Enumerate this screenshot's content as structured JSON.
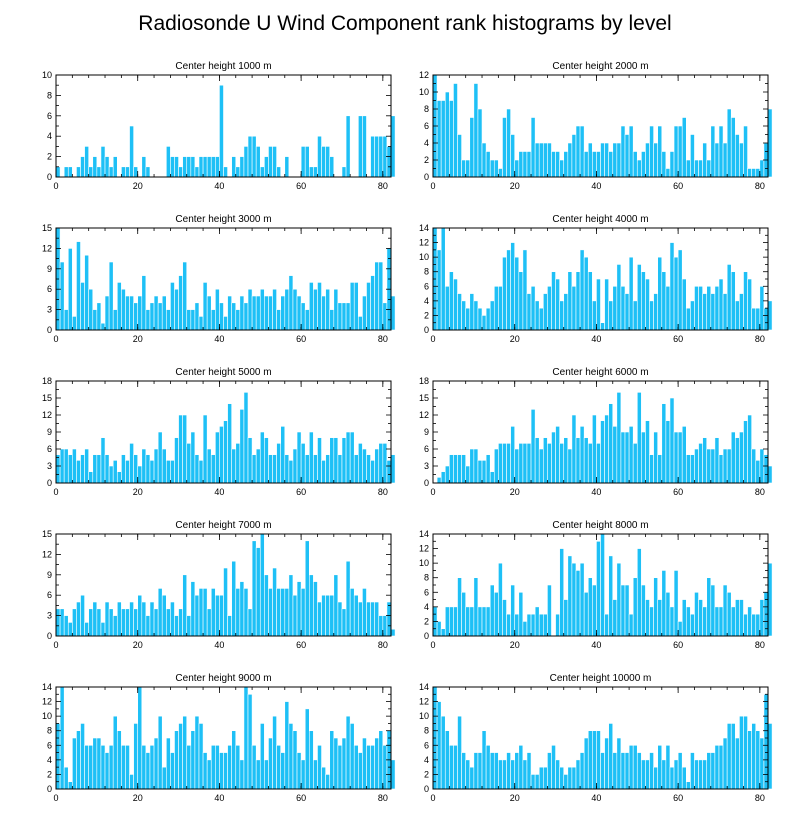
{
  "figure": {
    "title": "Radiosonde U Wind Component rank histograms by level",
    "bar_color": "#1ec0f6",
    "bar_edge_color": "#ffffff"
  },
  "chart_data": [
    {
      "type": "bar",
      "title": "Center height 1000 m",
      "xlim": [
        0,
        82
      ],
      "ylim": [
        0,
        10
      ],
      "xticks": [
        0,
        20,
        40,
        60,
        80
      ],
      "yticks": [
        0,
        2,
        4,
        6,
        8,
        10
      ],
      "values": [
        1,
        0,
        1,
        1,
        0,
        1,
        2,
        3,
        1,
        2,
        1,
        3,
        2,
        1,
        2,
        0,
        1,
        1,
        5,
        1,
        0,
        2,
        1,
        0,
        0,
        0,
        0,
        3,
        2,
        2,
        1,
        2,
        2,
        2,
        1,
        2,
        2,
        2,
        2,
        2,
        9,
        1,
        0,
        2,
        1,
        2,
        3,
        4,
        4,
        3,
        1,
        2,
        3,
        3,
        1,
        0,
        2,
        0,
        0,
        0,
        3,
        3,
        1,
        1,
        4,
        3,
        3,
        2,
        0,
        0,
        1,
        6,
        0,
        0,
        6,
        6,
        0,
        4,
        4,
        4,
        4,
        3,
        6
      ]
    },
    {
      "type": "bar",
      "title": "Center height 2000 m",
      "xlim": [
        0,
        82
      ],
      "ylim": [
        0,
        12
      ],
      "xticks": [
        0,
        20,
        40,
        60,
        80
      ],
      "yticks": [
        0,
        2,
        4,
        6,
        8,
        10,
        12
      ],
      "values": [
        12,
        9,
        9,
        10,
        9,
        11,
        5,
        2,
        2,
        7,
        11,
        8,
        4,
        3,
        2,
        2,
        1,
        7,
        8,
        5,
        2,
        3,
        3,
        3,
        7,
        4,
        4,
        4,
        4,
        3,
        3,
        2,
        3,
        4,
        5,
        6,
        6,
        3,
        4,
        3,
        3,
        4,
        4,
        3,
        4,
        4,
        6,
        5,
        6,
        3,
        2,
        3,
        4,
        6,
        4,
        6,
        3,
        1,
        3,
        6,
        6,
        7,
        2,
        5,
        2,
        2,
        4,
        2,
        6,
        4,
        6,
        4,
        8,
        7,
        5,
        4,
        6,
        1,
        1,
        1,
        2,
        4,
        8
      ]
    },
    {
      "type": "bar",
      "title": "Center height 3000 m",
      "xlim": [
        0,
        82
      ],
      "ylim": [
        0,
        15
      ],
      "xticks": [
        0,
        20,
        40,
        60,
        80
      ],
      "yticks": [
        0,
        3,
        6,
        9,
        12,
        15
      ],
      "values": [
        15,
        10,
        3,
        12,
        2,
        13,
        7,
        11,
        6,
        3,
        4,
        1,
        5,
        10,
        3,
        7,
        6,
        5,
        5,
        4,
        5,
        8,
        3,
        4,
        5,
        4,
        5,
        3,
        7,
        6,
        8,
        10,
        3,
        3,
        4,
        2,
        7,
        5,
        3,
        6,
        4,
        2,
        5,
        4,
        3,
        5,
        4,
        6,
        5,
        5,
        6,
        5,
        5,
        6,
        3,
        5,
        6,
        8,
        6,
        5,
        4,
        3,
        7,
        6,
        7,
        5,
        6,
        3,
        6,
        4,
        4,
        4,
        7,
        7,
        2,
        5,
        7,
        8,
        10,
        10,
        4,
        12,
        5
      ]
    },
    {
      "type": "bar",
      "title": "Center height 4000 m",
      "xlim": [
        0,
        82
      ],
      "ylim": [
        0,
        14
      ],
      "xticks": [
        0,
        20,
        40,
        60,
        80
      ],
      "yticks": [
        0,
        2,
        4,
        6,
        8,
        10,
        12,
        14
      ],
      "values": [
        14,
        11,
        14,
        6,
        8,
        7,
        5,
        4,
        3,
        5,
        4,
        3,
        2,
        3,
        4,
        6,
        6,
        10,
        11,
        12,
        10,
        8,
        11,
        5,
        6,
        4,
        3,
        5,
        6,
        8,
        7,
        4,
        5,
        8,
        6,
        8,
        11,
        10,
        8,
        4,
        7,
        1,
        7,
        4,
        6,
        9,
        6,
        5,
        10,
        4,
        9,
        8,
        7,
        4,
        5,
        10,
        8,
        6,
        12,
        10,
        11,
        7,
        3,
        4,
        6,
        6,
        5,
        6,
        5,
        6,
        7,
        5,
        9,
        8,
        4,
        5,
        8,
        7,
        3,
        3,
        6,
        3,
        4
      ]
    },
    {
      "type": "bar",
      "title": "Center height 5000 m",
      "xlim": [
        0,
        82
      ],
      "ylim": [
        0,
        18
      ],
      "xticks": [
        0,
        20,
        40,
        60,
        80
      ],
      "yticks": [
        0,
        3,
        6,
        9,
        12,
        15,
        18
      ],
      "values": [
        5,
        6,
        6,
        5,
        6,
        4,
        5,
        6,
        2,
        5,
        5,
        8,
        5,
        3,
        4,
        2,
        5,
        4,
        7,
        5,
        3,
        6,
        5,
        4,
        6,
        9,
        6,
        4,
        4,
        8,
        12,
        12,
        7,
        9,
        5,
        4,
        12,
        6,
        5,
        9,
        10,
        11,
        14,
        6,
        7,
        13,
        16,
        8,
        5,
        6,
        9,
        8,
        5,
        5,
        7,
        10,
        5,
        4,
        6,
        9,
        7,
        5,
        9,
        5,
        8,
        4,
        5,
        8,
        8,
        5,
        8,
        9,
        9,
        5,
        7,
        6,
        5,
        4,
        6,
        7,
        7,
        4,
        5
      ]
    },
    {
      "type": "bar",
      "title": "Center height 6000 m",
      "xlim": [
        0,
        82
      ],
      "ylim": [
        0,
        18
      ],
      "xticks": [
        0,
        20,
        40,
        60,
        80
      ],
      "yticks": [
        0,
        3,
        6,
        9,
        12,
        15,
        18
      ],
      "values": [
        0,
        1,
        2,
        3,
        5,
        5,
        5,
        5,
        3,
        6,
        6,
        4,
        4,
        5,
        2,
        6,
        7,
        7,
        7,
        10,
        6,
        7,
        7,
        7,
        13,
        8,
        6,
        8,
        7,
        9,
        10,
        7,
        8,
        6,
        12,
        8,
        10,
        8,
        7,
        12,
        7,
        11,
        12,
        14,
        10,
        16,
        9,
        9,
        10,
        7,
        16,
        9,
        11,
        5,
        9,
        5,
        14,
        11,
        15,
        9,
        9,
        10,
        5,
        5,
        6,
        7,
        8,
        6,
        6,
        8,
        5,
        6,
        6,
        9,
        8,
        9,
        11,
        12,
        6,
        4,
        6,
        5,
        3
      ]
    },
    {
      "type": "bar",
      "title": "Center height 7000 m",
      "xlim": [
        0,
        82
      ],
      "ylim": [
        0,
        15
      ],
      "xticks": [
        0,
        20,
        40,
        60,
        80
      ],
      "yticks": [
        0,
        3,
        6,
        9,
        12,
        15
      ],
      "values": [
        4,
        4,
        3,
        2,
        4,
        5,
        6,
        2,
        4,
        5,
        4,
        2,
        5,
        4,
        3,
        5,
        4,
        4,
        5,
        4,
        6,
        5,
        3,
        5,
        4,
        7,
        6,
        4,
        5,
        3,
        4,
        9,
        3,
        8,
        6,
        7,
        7,
        4,
        7,
        6,
        6,
        10,
        3,
        11,
        7,
        8,
        7,
        4,
        14,
        13,
        15,
        9,
        7,
        10,
        7,
        7,
        7,
        9,
        6,
        8,
        7,
        14,
        9,
        8,
        5,
        6,
        6,
        6,
        9,
        5,
        4,
        11,
        7,
        6,
        5,
        7,
        5,
        5,
        5,
        3,
        3,
        5,
        1
      ]
    },
    {
      "type": "bar",
      "title": "Center height 8000 m",
      "xlim": [
        0,
        82
      ],
      "ylim": [
        0,
        14
      ],
      "xticks": [
        0,
        20,
        40,
        60,
        80
      ],
      "yticks": [
        0,
        2,
        4,
        6,
        8,
        10,
        12,
        14
      ],
      "values": [
        4,
        2,
        1,
        4,
        4,
        4,
        8,
        6,
        4,
        4,
        8,
        4,
        4,
        4,
        7,
        6,
        10,
        5,
        3,
        7,
        3,
        6,
        2,
        3,
        3,
        4,
        3,
        3,
        7,
        0,
        3,
        12,
        5,
        11,
        10,
        9,
        10,
        6,
        8,
        7,
        13,
        14,
        3,
        11,
        5,
        10,
        7,
        7,
        3,
        8,
        12,
        7,
        5,
        4,
        8,
        5,
        9,
        6,
        4,
        9,
        2,
        5,
        4,
        3,
        6,
        5,
        4,
        8,
        7,
        4,
        4,
        7,
        6,
        4,
        5,
        5,
        3,
        4,
        3,
        3,
        5,
        6,
        10
      ]
    },
    {
      "type": "bar",
      "title": "Center height 9000 m",
      "xlim": [
        0,
        82
      ],
      "ylim": [
        0,
        14
      ],
      "xticks": [
        0,
        20,
        40,
        60,
        80
      ],
      "yticks": [
        0,
        2,
        4,
        6,
        8,
        10,
        12,
        14
      ],
      "values": [
        9,
        14,
        3,
        1,
        7,
        8,
        9,
        6,
        6,
        7,
        7,
        6,
        5,
        6,
        10,
        8,
        6,
        6,
        2,
        9,
        14,
        6,
        5,
        6,
        7,
        10,
        3,
        7,
        5,
        8,
        9,
        10,
        6,
        8,
        10,
        9,
        5,
        4,
        6,
        6,
        5,
        5,
        6,
        8,
        6,
        4,
        14,
        13,
        6,
        4,
        9,
        4,
        7,
        10,
        6,
        5,
        12,
        9,
        8,
        5,
        4,
        11,
        8,
        4,
        6,
        3,
        2,
        8,
        7,
        6,
        7,
        10,
        9,
        6,
        5,
        7,
        6,
        6,
        7,
        8,
        6,
        8,
        4
      ]
    },
    {
      "type": "bar",
      "title": "Center height 10000 m",
      "xlim": [
        0,
        82
      ],
      "ylim": [
        0,
        14
      ],
      "xticks": [
        0,
        20,
        40,
        60,
        80
      ],
      "yticks": [
        0,
        2,
        4,
        6,
        8,
        10,
        12,
        14
      ],
      "values": [
        14,
        12,
        10,
        8,
        6,
        6,
        10,
        5,
        4,
        3,
        5,
        5,
        8,
        6,
        5,
        5,
        4,
        4,
        5,
        4,
        5,
        6,
        4,
        5,
        2,
        2,
        3,
        3,
        5,
        6,
        4,
        3,
        2,
        3,
        3,
        4,
        5,
        7,
        8,
        8,
        8,
        5,
        7,
        9,
        5,
        7,
        5,
        5,
        6,
        6,
        5,
        4,
        4,
        5,
        3,
        6,
        4,
        6,
        3,
        4,
        5,
        3,
        1,
        5,
        4,
        4,
        4,
        5,
        5,
        6,
        6,
        7,
        9,
        9,
        7,
        10,
        10,
        8,
        9,
        8,
        7,
        13,
        9
      ]
    }
  ]
}
